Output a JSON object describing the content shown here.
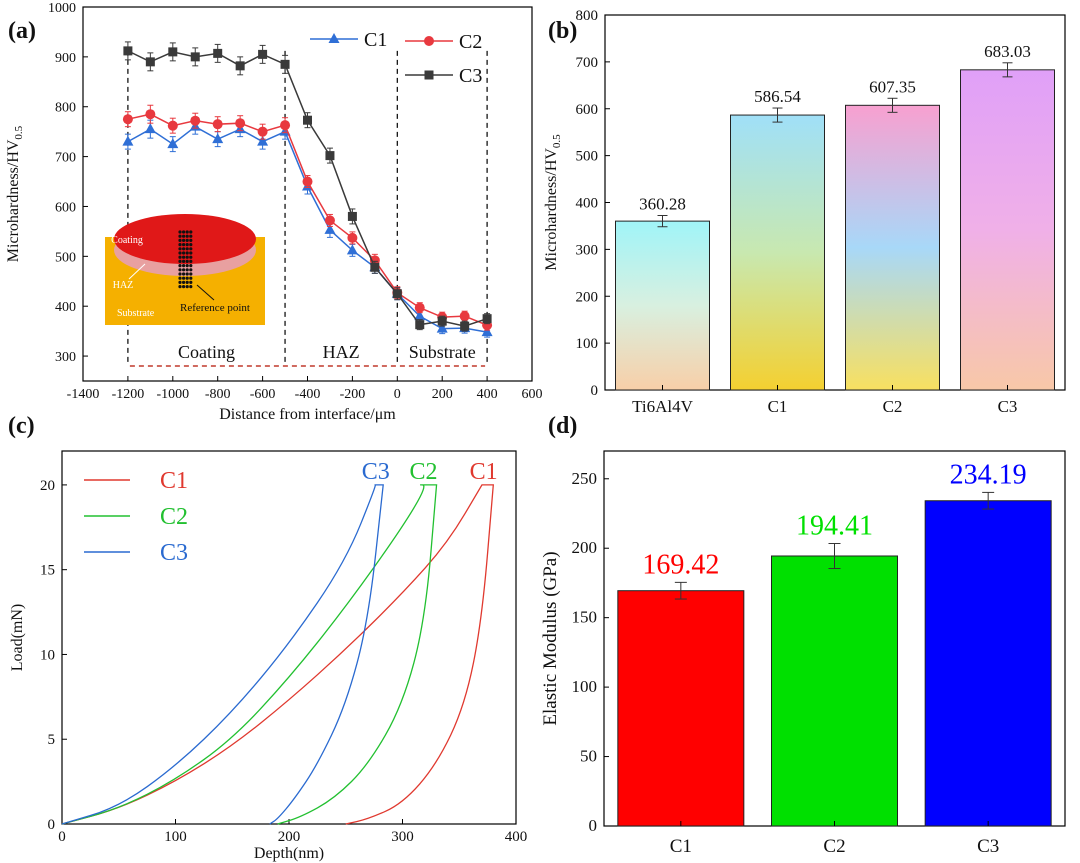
{
  "colors": {
    "c1": "#2f6fd6",
    "c2": "#e8393f",
    "c3": "#3a3a3a",
    "nano_c1": "#e0392f",
    "nano_c2": "#22c030",
    "nano_c3": "#2a6ad0",
    "modulus_c1": "#ff0000",
    "modulus_c2": "#00e000",
    "modulus_c3": "#0000ff",
    "dashed_red": "#c0392b",
    "inset_coating": "#e01818",
    "inset_haz": "#e8a0a0",
    "inset_substrate": "#f5b000"
  },
  "chart_data": [
    {
      "panel": "a",
      "type": "line",
      "panel_label": "(a)",
      "xlabel": "Distance from interface/μm",
      "ylabel_main": "Microhardness/HV",
      "ylabel_sub": "0.5",
      "xlim": [
        -1400,
        600
      ],
      "ylim": [
        250,
        1000
      ],
      "xticks": [
        -1400,
        -1200,
        -1000,
        -800,
        -600,
        -400,
        -200,
        0,
        200,
        400,
        600
      ],
      "xtick_labels": [
        "-1400",
        "-1200",
        "-1000",
        "-800",
        "-600",
        "-400",
        "-200",
        "0",
        "200",
        "400",
        "600"
      ],
      "yticks": [
        300,
        400,
        500,
        600,
        700,
        800,
        900,
        1000
      ],
      "ytick_labels": [
        "300",
        "400",
        "500",
        "600",
        "700",
        "800",
        "900",
        "1000"
      ],
      "x": [
        -1200,
        -1100,
        -1000,
        -900,
        -800,
        -700,
        -600,
        -500,
        -400,
        -300,
        -200,
        -100,
        0,
        100,
        200,
        300,
        400
      ],
      "series": [
        {
          "name": "C1",
          "marker": "triangle",
          "values": [
            730,
            755,
            725,
            760,
            735,
            755,
            730,
            750,
            640,
            553,
            512,
            478,
            425,
            380,
            355,
            356,
            348
          ],
          "errors": [
            15,
            18,
            15,
            15,
            15,
            15,
            15,
            15,
            15,
            15,
            12,
            12,
            12,
            12,
            10,
            10,
            10
          ]
        },
        {
          "name": "C2",
          "marker": "circle",
          "values": [
            775,
            785,
            762,
            772,
            765,
            767,
            750,
            763,
            650,
            572,
            537,
            492,
            427,
            397,
            378,
            380,
            362
          ],
          "errors": [
            15,
            18,
            15,
            15,
            15,
            15,
            15,
            15,
            12,
            12,
            12,
            12,
            12,
            10,
            10,
            10,
            10
          ]
        },
        {
          "name": "C3",
          "marker": "square",
          "values": [
            912,
            890,
            910,
            900,
            907,
            882,
            905,
            885,
            773,
            702,
            580,
            478,
            425,
            363,
            370,
            360,
            375
          ],
          "errors": [
            18,
            18,
            18,
            18,
            18,
            18,
            18,
            18,
            15,
            15,
            15,
            12,
            12,
            10,
            10,
            10,
            10
          ]
        }
      ],
      "legend_position": "top-right",
      "region_labels": [
        "Coating",
        "HAZ",
        "Substrate"
      ],
      "region_boundaries_x": [
        -1200,
        -500,
        0,
        400
      ],
      "inset_labels": {
        "coating": "Coating",
        "haz": "HAZ",
        "substrate": "Substrate",
        "reference": "Reference point"
      }
    },
    {
      "panel": "b",
      "type": "bar",
      "panel_label": "(b)",
      "ylabel_main": "Microhardness/HV",
      "ylabel_sub": "0.5",
      "ylim": [
        0,
        800
      ],
      "yticks": [
        0,
        100,
        200,
        300,
        400,
        500,
        600,
        700,
        800
      ],
      "ytick_labels": [
        "0",
        "100",
        "200",
        "300",
        "400",
        "500",
        "600",
        "700",
        "800"
      ],
      "categories": [
        "Ti6Al4V",
        "C1",
        "C2",
        "C3"
      ],
      "values": [
        360.28,
        586.54,
        607.35,
        683.03
      ],
      "value_labels": [
        "360.28",
        "586.54",
        "607.35",
        "683.03"
      ],
      "errors": [
        12,
        15,
        15,
        15
      ]
    },
    {
      "panel": "c",
      "type": "line",
      "panel_label": "(c)",
      "xlabel": "Depth(nm)",
      "ylabel": "Load(mN)",
      "xlim": [
        0,
        400
      ],
      "ylim": [
        0,
        22
      ],
      "xticks": [
        0,
        100,
        200,
        300,
        400
      ],
      "xtick_labels": [
        "0",
        "100",
        "200",
        "300",
        "400"
      ],
      "yticks": [
        0,
        5,
        10,
        15,
        20
      ],
      "ytick_labels": [
        "0",
        "5",
        "10",
        "15",
        "20"
      ],
      "series": [
        {
          "name": "C1",
          "loading": [
            [
              0,
              0
            ],
            [
              50,
              0.9
            ],
            [
              100,
              2.5
            ],
            [
              150,
              4.6
            ],
            [
              200,
              7.3
            ],
            [
              250,
              10.3
            ],
            [
              300,
              13.6
            ],
            [
              340,
              16.6
            ],
            [
              370,
              20
            ]
          ],
          "hold": [
            [
              370,
              20
            ],
            [
              380,
              20
            ]
          ],
          "unloading": [
            [
              380,
              20
            ],
            [
              370,
              12
            ],
            [
              355,
              7
            ],
            [
              330,
              3.5
            ],
            [
              300,
              1.2
            ],
            [
              270,
              0.3
            ],
            [
              250,
              0
            ]
          ]
        },
        {
          "name": "C2",
          "loading": [
            [
              0,
              0
            ],
            [
              50,
              0.9
            ],
            [
              100,
              2.6
            ],
            [
              150,
              5.0
            ],
            [
              200,
              8.6
            ],
            [
              250,
              12.8
            ],
            [
              300,
              17.5
            ],
            [
              322,
              20
            ]
          ],
          "hold": [
            [
              313,
              20
            ],
            [
              330,
              20
            ]
          ],
          "unloading": [
            [
              330,
              20
            ],
            [
              320,
              12
            ],
            [
              300,
              7
            ],
            [
              270,
              3.5
            ],
            [
              240,
              1.5
            ],
            [
              210,
              0.4
            ],
            [
              190,
              0
            ]
          ]
        },
        {
          "name": "C3",
          "loading": [
            [
              0,
              0
            ],
            [
              50,
              1.0
            ],
            [
              100,
              3.4
            ],
            [
              150,
              6.6
            ],
            [
              200,
              10.6
            ],
            [
              250,
              15.5
            ],
            [
              277,
              20
            ]
          ],
          "hold": [
            [
              275,
              20
            ],
            [
              283,
              20
            ]
          ],
          "unloading": [
            [
              283,
              20
            ],
            [
              270,
              12
            ],
            [
              250,
              7
            ],
            [
              225,
              3.5
            ],
            [
              205,
              1.5
            ],
            [
              190,
              0.3
            ],
            [
              183,
              0
            ]
          ]
        }
      ],
      "legend_position": "top-left",
      "curve_labels": [
        "C3",
        "C2",
        "C1"
      ]
    },
    {
      "panel": "d",
      "type": "bar",
      "panel_label": "(d)",
      "ylabel": "Elastic Modulus (GPa)",
      "ylim": [
        0,
        270
      ],
      "yticks": [
        0,
        50,
        100,
        150,
        200,
        250
      ],
      "ytick_labels": [
        "0",
        "50",
        "100",
        "150",
        "200",
        "250"
      ],
      "categories": [
        "C1",
        "C2",
        "C3"
      ],
      "values": [
        169.42,
        194.41,
        234.19
      ],
      "value_labels": [
        "169.42",
        "194.41",
        "234.19"
      ],
      "errors": [
        6,
        9,
        6
      ]
    }
  ]
}
